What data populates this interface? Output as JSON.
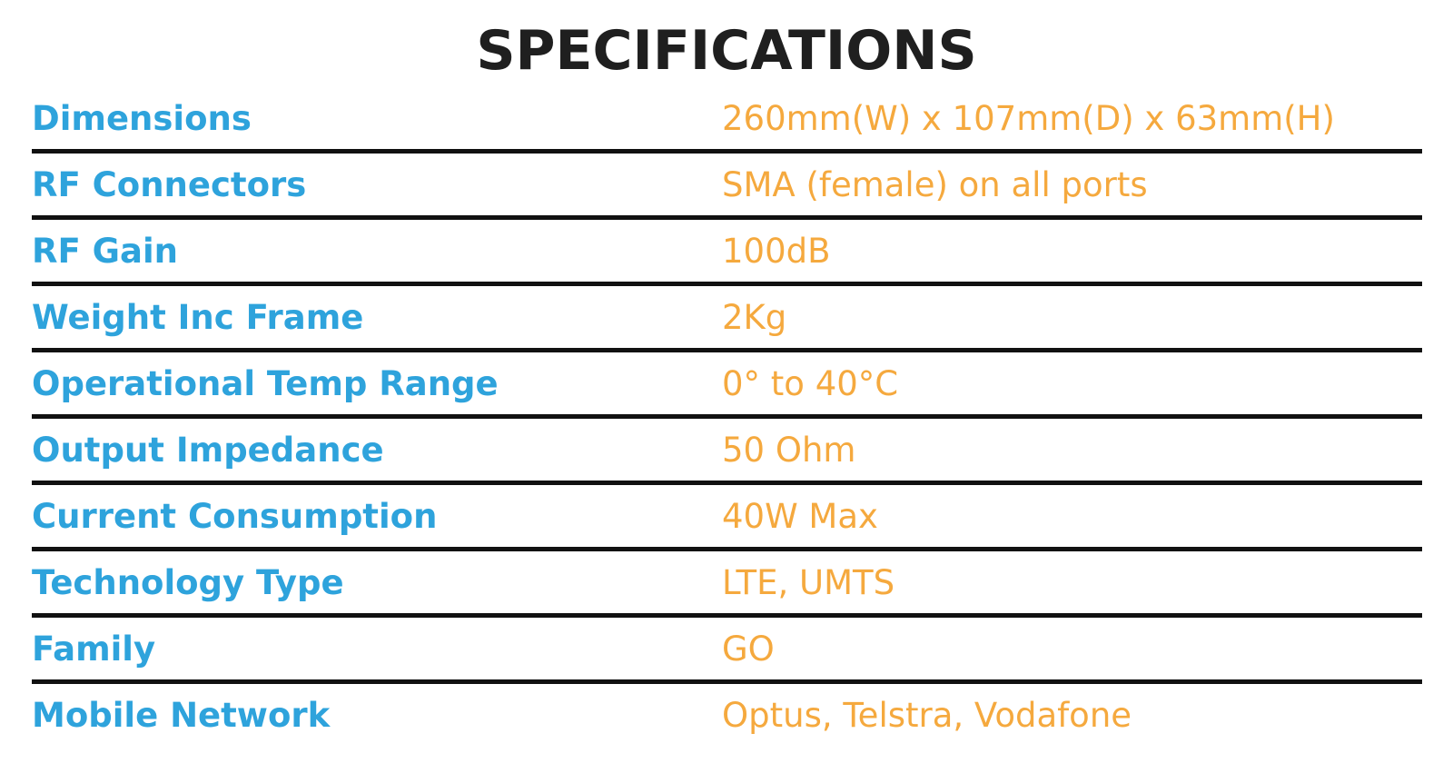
{
  "title": "SPECIFICATIONS",
  "colors": {
    "label": "#2ea3dc",
    "value": "#f5a93e",
    "title": "#1f1f1f",
    "divider": "#111111"
  },
  "rows": [
    {
      "label": "Dimensions",
      "value": "260mm(W) x 107mm(D) x 63mm(H)"
    },
    {
      "label": "RF Connectors",
      "value": "SMA (female) on all ports"
    },
    {
      "label": "RF Gain",
      "value": "100dB"
    },
    {
      "label": "Weight Inc Frame",
      "value": "2Kg"
    },
    {
      "label": "Operational Temp Range",
      "value": "0° to 40°C"
    },
    {
      "label": "Output Impedance",
      "value": "50 Ohm"
    },
    {
      "label": "Current Consumption",
      "value": "40W Max"
    },
    {
      "label": "Technology Type",
      "value": "LTE, UMTS"
    },
    {
      "label": "Family",
      "value": "GO"
    },
    {
      "label": "Mobile Network",
      "value": "Optus, Telstra, Vodafone"
    }
  ]
}
